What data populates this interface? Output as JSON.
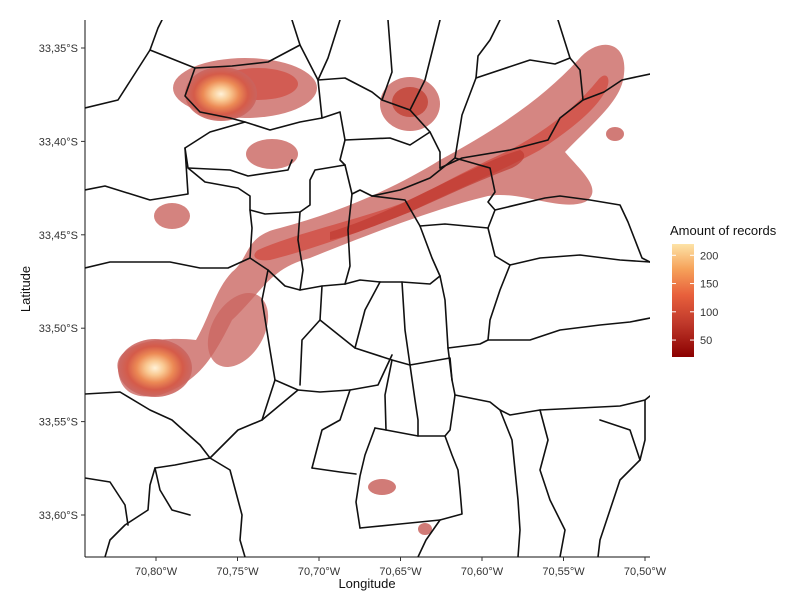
{
  "axes": {
    "xlabel": "Longitude",
    "ylabel": "Latitude",
    "x_ticks": [
      "70,80°W",
      "70,75°W",
      "70,70°W",
      "70,65°W",
      "70,60°W",
      "70,55°W",
      "70,50°W"
    ],
    "y_ticks": [
      "33,35°S",
      "33,40°S",
      "33,45°S",
      "33,50°S",
      "33,55°S",
      "33,60°S"
    ]
  },
  "legend": {
    "title": "Amount of records",
    "ticks": [
      "200",
      "150",
      "100",
      "50"
    ],
    "colors": [
      "#8b0000",
      "#c0392b",
      "#e8603c",
      "#f6a25a",
      "#fde3a7"
    ]
  },
  "chart_data": {
    "type": "heatmap",
    "xlabel": "Longitude",
    "ylabel": "Latitude",
    "xlim": [
      -70.845,
      -70.485
    ],
    "ylim": [
      -33.625,
      -33.335
    ],
    "value_range": [
      20,
      220
    ],
    "hotspots": [
      {
        "lon": -70.76,
        "lat": -33.375,
        "peak": 215
      },
      {
        "lon": -70.8,
        "lat": -33.522,
        "peak": 220
      },
      {
        "lon": -70.635,
        "lat": -33.38,
        "peak": 90
      },
      {
        "lon": -70.735,
        "lat": -33.412,
        "peak": 45
      },
      {
        "lon": -70.652,
        "lat": -33.444,
        "peak": 70
      },
      {
        "lon": -70.596,
        "lat": -33.419,
        "peak": 75
      },
      {
        "lon": -70.565,
        "lat": -33.411,
        "peak": 65
      },
      {
        "lon": -70.51,
        "lat": -33.365,
        "peak": 70
      },
      {
        "lon": -70.72,
        "lat": -33.46,
        "peak": 70
      },
      {
        "lon": -70.77,
        "lat": -33.508,
        "peak": 60
      },
      {
        "lon": -70.643,
        "lat": -33.584,
        "peak": 25
      }
    ]
  }
}
